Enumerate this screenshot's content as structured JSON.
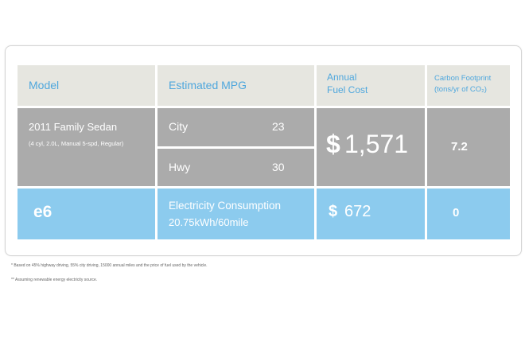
{
  "headers": {
    "model": "Model",
    "mpg": "Estimated MPG",
    "fuel_cost_line1": "Annual",
    "fuel_cost_line2": "Fuel Cost",
    "carbon_line1": "Carbon Footprint",
    "carbon_line2": "(tons/yr of CO₂)"
  },
  "sedan": {
    "name": "2011 Family Sedan",
    "spec": "(4 cyl, 2.0L, Manual 5-spd, Regular)",
    "city_label": "City",
    "city_value": "23",
    "hwy_label": "Hwy",
    "hwy_value": "30",
    "fuel_cost_symbol": "$",
    "fuel_cost_value": "1,571",
    "carbon": "7.2"
  },
  "e6": {
    "name": "e6",
    "consumption_label": "Electricity Consumption",
    "consumption_value": "20.75kWh/60mile",
    "fuel_cost_symbol": "$",
    "fuel_cost_value": "672",
    "carbon": "0"
  },
  "footnotes": [
    "* Based on 45% highway driving, 55% city driving, 15000 annual miles and the price of fuel used by the vehicle.",
    "** Assuming renewable energy electricity source."
  ],
  "colors": {
    "header_bg": "#e6e6e0",
    "header_text": "#4fa7dd",
    "gray_row": "#ababab",
    "blue_row": "#8ccbee"
  }
}
